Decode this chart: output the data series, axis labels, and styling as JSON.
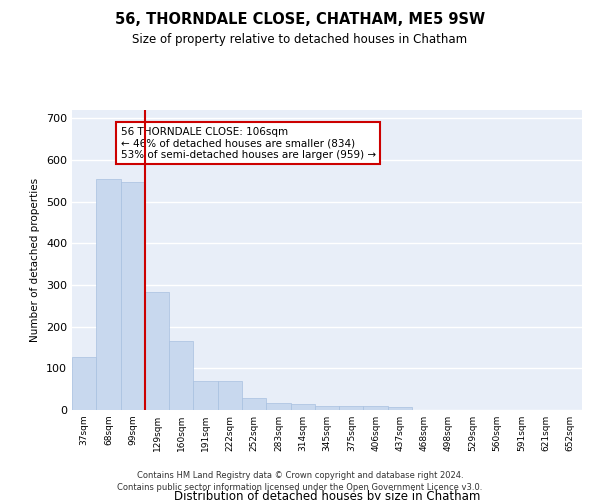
{
  "title": "56, THORNDALE CLOSE, CHATHAM, ME5 9SW",
  "subtitle": "Size of property relative to detached houses in Chatham",
  "xlabel": "Distribution of detached houses by size in Chatham",
  "ylabel": "Number of detached properties",
  "bar_color": "#c8d8ee",
  "bar_edge_color": "#a8c0e0",
  "background_color": "#e8eef8",
  "grid_color": "#ffffff",
  "categories": [
    "37sqm",
    "68sqm",
    "99sqm",
    "129sqm",
    "160sqm",
    "191sqm",
    "222sqm",
    "252sqm",
    "283sqm",
    "314sqm",
    "345sqm",
    "375sqm",
    "406sqm",
    "437sqm",
    "468sqm",
    "498sqm",
    "529sqm",
    "560sqm",
    "591sqm",
    "621sqm",
    "652sqm"
  ],
  "values": [
    127,
    554,
    548,
    284,
    165,
    70,
    70,
    30,
    18,
    14,
    10,
    10,
    10,
    8,
    0,
    0,
    0,
    0,
    0,
    0,
    0
  ],
  "red_line_x": 2.5,
  "annotation_text": "56 THORNDALE CLOSE: 106sqm\n← 46% of detached houses are smaller (834)\n53% of semi-detached houses are larger (959) →",
  "annotation_box_color": "#ffffff",
  "annotation_box_edge": "#cc0000",
  "red_line_color": "#cc0000",
  "ylim": [
    0,
    720
  ],
  "yticks": [
    0,
    100,
    200,
    300,
    400,
    500,
    600,
    700
  ],
  "footer_line1": "Contains HM Land Registry data © Crown copyright and database right 2024.",
  "footer_line2": "Contains public sector information licensed under the Open Government Licence v3.0."
}
